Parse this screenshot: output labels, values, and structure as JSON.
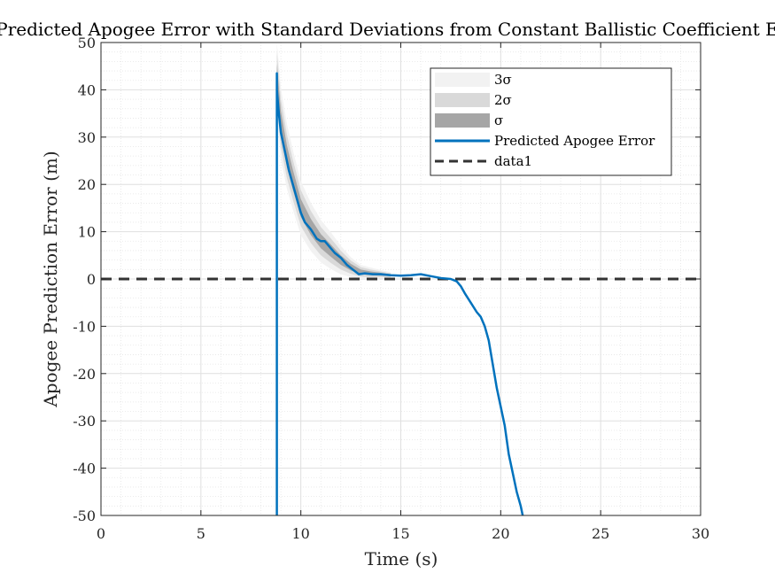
{
  "chart_data": {
    "type": "line",
    "title": "Predicted Apogee Error with Standard Deviations from Constant Ballistic Coefficient E",
    "xlabel": "Time (s)",
    "ylabel": "Apogee Prediction Error (m)",
    "xlim": [
      0,
      30
    ],
    "ylim": [
      -50,
      50
    ],
    "xticks": [
      0,
      5,
      10,
      15,
      20,
      25,
      30
    ],
    "yticks": [
      -50,
      -40,
      -30,
      -20,
      -10,
      0,
      10,
      20,
      30,
      40,
      50
    ],
    "grid": true,
    "minor_grid": true,
    "legend_placement": "top-right",
    "legend": [
      "3σ",
      "2σ",
      "σ",
      "Predicted Apogee Error",
      "data1"
    ],
    "colors": {
      "band3": "#f2f2f2",
      "band2": "#d9d9d9",
      "band1": "#a6a6a6",
      "prediction": "#0072bd",
      "reference": "#333333",
      "grid": "#dfdfdf"
    },
    "bands": {
      "x": [
        8.8,
        9.0,
        9.3,
        9.6,
        10.0,
        10.5,
        11.0,
        11.5,
        12.0,
        12.5,
        13.0,
        13.5,
        14.0,
        14.5
      ],
      "center": [
        43,
        33,
        26,
        21,
        15,
        11,
        8,
        6,
        4,
        2.5,
        1.5,
        1.2,
        1.0,
        0.8
      ],
      "sigma": [
        2.5,
        2.5,
        2.3,
        2.1,
        1.9,
        1.7,
        1.5,
        1.3,
        1.0,
        0.7,
        0.5,
        0.4,
        0.3,
        0.2
      ]
    },
    "series": [
      {
        "name": "Predicted Apogee Error",
        "x": [
          8.8,
          8.8,
          8.8,
          8.9,
          9.0,
          9.2,
          9.4,
          9.6,
          9.8,
          10.0,
          10.2,
          10.5,
          10.8,
          11.0,
          11.2,
          11.5,
          11.7,
          12.0,
          12.3,
          12.6,
          12.9,
          13.2,
          13.6,
          14.0,
          14.5,
          15.0,
          15.5,
          16.0,
          16.5,
          17.0,
          17.5,
          17.8,
          18.0,
          18.2,
          18.5,
          18.8,
          19.0,
          19.2,
          19.4,
          19.6,
          19.8,
          20.0,
          20.2,
          20.4,
          20.6,
          20.8,
          21.0,
          21.1
        ],
        "y": [
          -50,
          43.5,
          40,
          35,
          31,
          27,
          23,
          20,
          17,
          14,
          12,
          10.5,
          8.5,
          8.0,
          8.0,
          6.5,
          5.5,
          4.5,
          3.0,
          2.0,
          1.0,
          1.2,
          1.0,
          1.0,
          0.8,
          0.7,
          0.8,
          1.0,
          0.6,
          0.2,
          0.0,
          -0.5,
          -1.5,
          -3,
          -5,
          -7,
          -8,
          -10,
          -13,
          -18,
          -23,
          -27,
          -31,
          -37,
          -41,
          -45,
          -48,
          -50
        ]
      },
      {
        "name": "data1",
        "x": [
          0,
          30
        ],
        "y": [
          0,
          0
        ]
      }
    ]
  }
}
